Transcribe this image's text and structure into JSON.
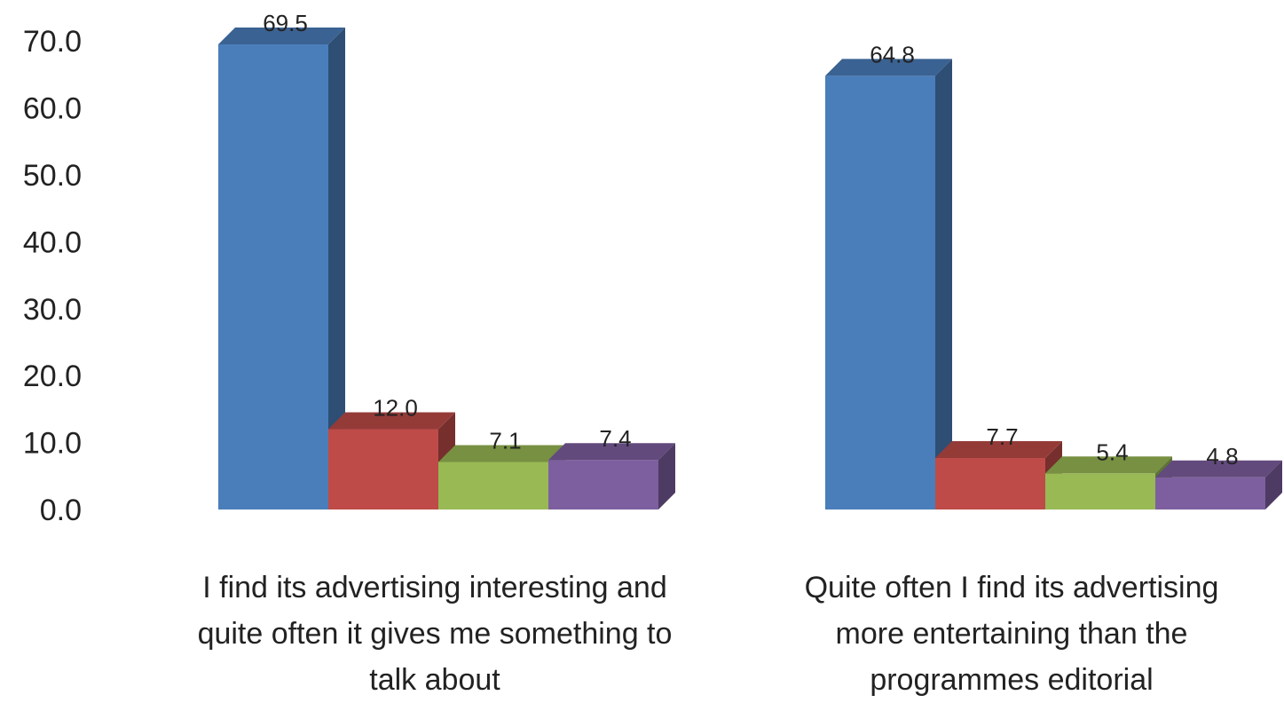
{
  "chart_data": {
    "type": "bar",
    "categories": [
      "I find its advertising interesting and quite often it gives me something to talk about",
      "Quite often I find its advertising more entertaining than the programmes editorial"
    ],
    "category_lines": [
      [
        "I find its advertising interesting and",
        "quite often it gives me something to",
        "talk about"
      ],
      [
        "Quite often I find its advertising",
        "more entertaining than the",
        "programmes editorial"
      ]
    ],
    "series": [
      {
        "values": [
          69.5,
          64.8
        ],
        "color": "#4a7ebb"
      },
      {
        "values": [
          12.0,
          7.7
        ],
        "color": "#be4b48"
      },
      {
        "values": [
          7.1,
          5.4
        ],
        "color": "#98b954"
      },
      {
        "values": [
          7.4,
          4.8
        ],
        "color": "#7d5fa0"
      }
    ],
    "data_labels": [
      [
        "69.5",
        "12.0",
        "7.1",
        "7.4"
      ],
      [
        "64.8",
        "7.7",
        "5.4",
        "4.8"
      ]
    ],
    "yticks": [
      "0.0",
      "10.0",
      "20.0",
      "30.0",
      "40.0",
      "50.0",
      "60.0",
      "70.0"
    ],
    "ylim": [
      0,
      70
    ],
    "grid": false,
    "legend": "none",
    "style": "3d-column"
  }
}
